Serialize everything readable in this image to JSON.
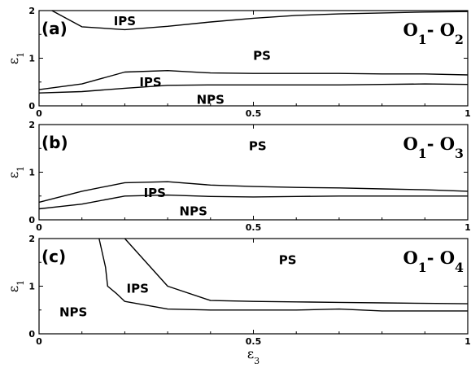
{
  "chart_data": [
    {
      "type": "line",
      "panel_label": "(a)",
      "pair_label": "O1 - O2",
      "ylabel": "ε1",
      "xlabel": "",
      "xlim": [
        0,
        1
      ],
      "ylim": [
        0,
        2
      ],
      "xticks": [
        "0",
        "0.5",
        "1"
      ],
      "yticks": [
        "0",
        "1",
        "2"
      ],
      "regions": [
        {
          "text": "IPS",
          "x": 0.2,
          "y": 1.78
        },
        {
          "text": "PS",
          "x": 0.52,
          "y": 1.05
        },
        {
          "text": "IPS",
          "x": 0.26,
          "y": 0.5
        },
        {
          "text": "NPS",
          "x": 0.4,
          "y": 0.13
        }
      ],
      "series": [
        {
          "x": [
            0.03,
            0.1,
            0.2,
            0.3,
            0.4,
            0.5,
            0.6,
            0.7,
            0.8,
            0.9,
            1.0
          ],
          "y": [
            2.0,
            1.66,
            1.6,
            1.67,
            1.76,
            1.84,
            1.9,
            1.93,
            1.95,
            1.97,
            1.98
          ]
        },
        {
          "x": [
            0.0,
            0.1,
            0.2,
            0.3,
            0.4,
            0.5,
            0.6,
            0.7,
            0.8,
            0.9,
            1.0
          ],
          "y": [
            0.34,
            0.46,
            0.71,
            0.74,
            0.69,
            0.68,
            0.68,
            0.68,
            0.67,
            0.67,
            0.65
          ]
        },
        {
          "x": [
            0.0,
            0.1,
            0.2,
            0.3,
            0.4,
            0.5,
            0.6,
            0.7,
            0.8,
            0.9,
            1.0
          ],
          "y": [
            0.27,
            0.3,
            0.37,
            0.43,
            0.44,
            0.44,
            0.44,
            0.44,
            0.45,
            0.46,
            0.45
          ]
        }
      ]
    },
    {
      "type": "line",
      "panel_label": "(b)",
      "pair_label": "O1 - O3",
      "ylabel": "ε1",
      "xlabel": "",
      "xlim": [
        0,
        1
      ],
      "ylim": [
        0,
        2
      ],
      "xticks": [
        "0",
        "0.5",
        "1"
      ],
      "yticks": [
        "0",
        "1",
        "2"
      ],
      "regions": [
        {
          "text": "PS",
          "x": 0.51,
          "y": 1.55
        },
        {
          "text": "IPS",
          "x": 0.27,
          "y": 0.56
        },
        {
          "text": "NPS",
          "x": 0.36,
          "y": 0.18
        }
      ],
      "series": [
        {
          "x": [
            0.0,
            0.1,
            0.2,
            0.3,
            0.4,
            0.5,
            0.6,
            0.7,
            0.8,
            0.9,
            1.0
          ],
          "y": [
            0.37,
            0.6,
            0.78,
            0.8,
            0.73,
            0.7,
            0.68,
            0.67,
            0.65,
            0.63,
            0.6
          ]
        },
        {
          "x": [
            0.0,
            0.1,
            0.2,
            0.3,
            0.4,
            0.5,
            0.6,
            0.7,
            0.8,
            0.9,
            1.0
          ],
          "y": [
            0.23,
            0.33,
            0.5,
            0.52,
            0.49,
            0.48,
            0.49,
            0.5,
            0.5,
            0.5,
            0.5
          ]
        }
      ]
    },
    {
      "type": "line",
      "panel_label": "(c)",
      "pair_label": "O1 - O4",
      "ylabel": "ε1",
      "xlabel": "ε3",
      "xlim": [
        0,
        1
      ],
      "ylim": [
        0,
        2
      ],
      "xticks": [
        "0",
        "0.5",
        "1"
      ],
      "yticks": [
        "0",
        "1",
        "2"
      ],
      "regions": [
        {
          "text": "PS",
          "x": 0.58,
          "y": 1.55
        },
        {
          "text": "IPS",
          "x": 0.23,
          "y": 0.95
        },
        {
          "text": "NPS",
          "x": 0.08,
          "y": 0.45
        }
      ],
      "series": [
        {
          "x": [
            0.14,
            0.155,
            0.16,
            0.18,
            0.2,
            0.3,
            0.4,
            0.5,
            0.6,
            0.7,
            0.8,
            0.9,
            1.0
          ],
          "y": [
            2.0,
            1.4,
            1.0,
            0.85,
            0.68,
            0.52,
            0.5,
            0.5,
            0.5,
            0.52,
            0.48,
            0.48,
            0.48
          ]
        },
        {
          "x": [
            0.2,
            0.3,
            0.4,
            0.5,
            0.6,
            0.7,
            0.8,
            0.9,
            1.0
          ],
          "y": [
            2.0,
            1.0,
            0.7,
            0.68,
            0.67,
            0.66,
            0.65,
            0.64,
            0.63
          ]
        }
      ]
    }
  ]
}
